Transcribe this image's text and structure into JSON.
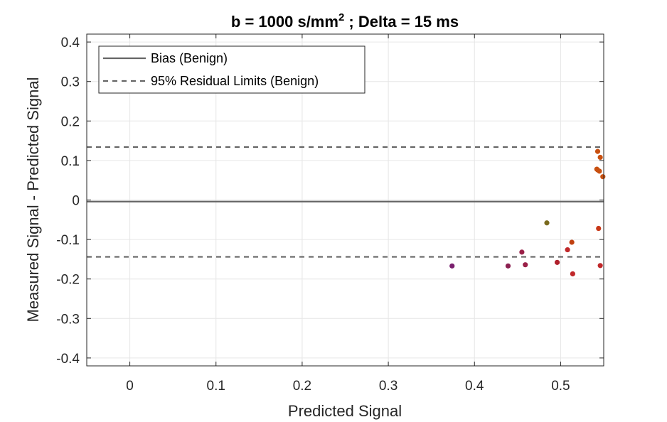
{
  "chart_data": {
    "type": "scatter",
    "title_main": "b = 1000 s/mm",
    "title_sup": "2",
    "title_rest": " ; Delta = 15 ms",
    "xlabel": "Predicted Signal",
    "ylabel": "Measured Signal - Predicted Signal",
    "xlim": [
      -0.05,
      0.55
    ],
    "ylim": [
      -0.42,
      0.42
    ],
    "xticks": [
      0,
      0.1,
      0.2,
      0.3,
      0.4,
      0.5
    ],
    "xtick_labels": [
      "0",
      "0.1",
      "0.2",
      "0.3",
      "0.4",
      "0.5"
    ],
    "yticks": [
      0.4,
      0.3,
      0.2,
      0.1,
      0,
      -0.1,
      -0.2,
      -0.3,
      -0.4
    ],
    "ytick_labels": [
      "0.4",
      "0.3",
      "0.2",
      "0.1",
      "0",
      "-0.1",
      "-0.2",
      "-0.3",
      "-0.4"
    ],
    "grid": true,
    "legend_position": "top-left",
    "bias": -0.004,
    "upper_limit": 0.134,
    "lower_limit": -0.144,
    "legend": [
      {
        "label": "Bias (Benign)",
        "style": "solid",
        "color": "#666666"
      },
      {
        "label": "95% Residual Limits (Benign)",
        "style": "dashed",
        "color": "#666666"
      }
    ],
    "points": [
      {
        "x": 0.374,
        "y": -0.167,
        "color": "#7a1f6e"
      },
      {
        "x": 0.439,
        "y": -0.167,
        "color": "#8b2050"
      },
      {
        "x": 0.455,
        "y": -0.132,
        "color": "#9a2048"
      },
      {
        "x": 0.459,
        "y": -0.164,
        "color": "#9a2048"
      },
      {
        "x": 0.484,
        "y": -0.058,
        "color": "#7a6a1e"
      },
      {
        "x": 0.496,
        "y": -0.158,
        "color": "#b0202c"
      },
      {
        "x": 0.508,
        "y": -0.126,
        "color": "#c0282a"
      },
      {
        "x": 0.513,
        "y": -0.107,
        "color": "#c04010"
      },
      {
        "x": 0.514,
        "y": -0.187,
        "color": "#c0282a"
      },
      {
        "x": 0.542,
        "y": 0.078,
        "color": "#c85010"
      },
      {
        "x": 0.543,
        "y": 0.123,
        "color": "#c85010"
      },
      {
        "x": 0.543,
        "y": 0.076,
        "color": "#c85010"
      },
      {
        "x": 0.544,
        "y": -0.072,
        "color": "#c83818"
      },
      {
        "x": 0.545,
        "y": 0.073,
        "color": "#c85010"
      },
      {
        "x": 0.546,
        "y": 0.108,
        "color": "#c85010"
      },
      {
        "x": 0.546,
        "y": -0.166,
        "color": "#c0282a"
      },
      {
        "x": 0.549,
        "y": 0.059,
        "color": "#c85010"
      }
    ]
  }
}
